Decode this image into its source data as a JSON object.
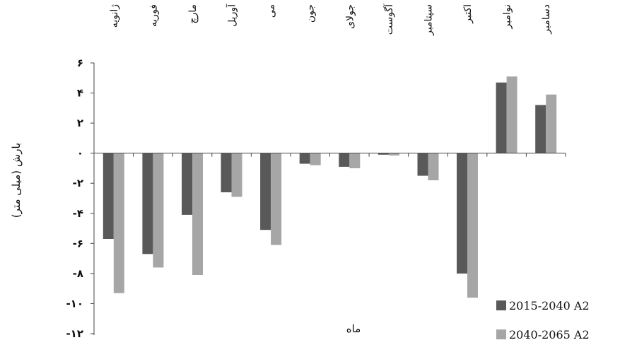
{
  "chart_data": {
    "type": "bar",
    "categories": [
      "ژانویه",
      "فوریه",
      "مارچ",
      "آوریل",
      "می",
      "جون",
      "جولای",
      "آگوست",
      "سپتامبر",
      "اکتبر",
      "نوامبر",
      "دسامبر"
    ],
    "series": [
      {
        "name": "2015-2040 A2",
        "values": [
          -5.7,
          -6.7,
          -4.1,
          -2.6,
          -5.1,
          -0.7,
          -0.9,
          -0.1,
          -1.5,
          -8.0,
          4.7,
          3.2
        ],
        "color": "#595959"
      },
      {
        "name": "2040-2065 A2",
        "values": [
          -9.3,
          -7.6,
          -8.1,
          -2.9,
          -6.1,
          -0.8,
          -1.0,
          -0.15,
          -1.8,
          -9.6,
          5.1,
          3.9
        ],
        "color": "#a6a6a6"
      }
    ],
    "y_ticks": [
      6,
      4,
      2,
      0,
      -2,
      -4,
      -6,
      -8,
      -10,
      -12
    ],
    "y_tick_labels": [
      "۶",
      "۴",
      "۲",
      "۰",
      "-۲",
      "-۴",
      "-۶",
      "-۸",
      "-۱۰",
      "-۱۲"
    ],
    "ylim": [
      -12,
      6
    ],
    "ylabel": "بارش (میلی متر)",
    "xlabel": "ماه",
    "x_axis_position": "top",
    "legend_position": "bottom-right",
    "grid": false
  }
}
